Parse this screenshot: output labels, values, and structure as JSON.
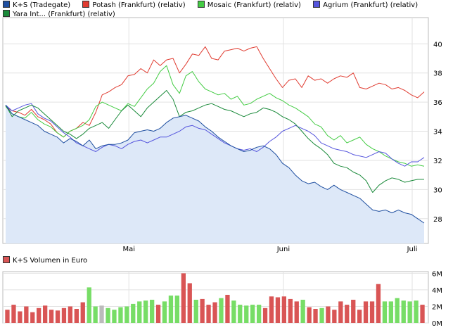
{
  "chart_data": [
    {
      "type": "line",
      "legend": [
        {
          "name": "K+S (Tradegate)",
          "color": "#1f4fa0"
        },
        {
          "name": "Potash (Frankfurt) (relativ)",
          "color": "#e03c31"
        },
        {
          "name": "Mosaic (Frankfurt) (relativ)",
          "color": "#44cc44"
        },
        {
          "name": "Agrium (Frankfurt) (relativ)",
          "color": "#5555dd"
        },
        {
          "name": "Yara Int... (Frankfurt) (relativ)",
          "color": "#1a8a3a"
        }
      ],
      "x_ticks": [
        "Mai",
        "Juni",
        "Juli"
      ],
      "y_ticks": [
        28,
        30,
        32,
        34,
        36,
        38,
        40
      ],
      "ylim": [
        26.3,
        41.8
      ],
      "n_points": 66,
      "series": [
        {
          "name": "K+S (Tradegate)",
          "color": "#1f4fa0",
          "values": [
            35.8,
            35.2,
            35.0,
            34.8,
            34.6,
            34.4,
            34.0,
            33.8,
            33.6,
            33.2,
            33.5,
            33.3,
            33.0,
            33.4,
            32.8,
            33.0,
            33.1,
            33.1,
            33.2,
            33.4,
            33.9,
            34.0,
            34.1,
            34.0,
            34.2,
            34.6,
            34.9,
            35.0,
            35.1,
            34.9,
            34.7,
            34.3,
            34.0,
            33.6,
            33.3,
            33.0,
            32.8,
            32.6,
            32.7,
            32.9,
            33.0,
            32.8,
            32.4,
            31.8,
            31.5,
            31.0,
            30.6,
            30.4,
            30.5,
            30.2,
            30.0,
            30.3,
            30.0,
            29.8,
            29.6,
            29.4,
            29.0,
            28.6,
            28.5,
            28.6,
            28.4,
            28.6,
            28.4,
            28.3,
            28.0,
            27.7
          ]
        },
        {
          "name": "Potash (Frankfurt) (relativ)",
          "color": "#e03c31",
          "values": [
            35.7,
            35.4,
            35.3,
            35.1,
            35.5,
            35.0,
            34.8,
            34.5,
            33.9,
            33.6,
            34.0,
            34.2,
            34.6,
            34.4,
            35.3,
            36.5,
            36.7,
            37.0,
            37.2,
            37.8,
            37.9,
            38.3,
            38.0,
            38.9,
            38.5,
            38.9,
            39.0,
            38.0,
            38.6,
            39.3,
            39.2,
            39.8,
            39.0,
            38.9,
            39.5,
            39.6,
            39.7,
            39.5,
            39.7,
            39.8,
            39.0,
            38.3,
            37.6,
            37.0,
            37.5,
            37.6,
            37.0,
            37.8,
            37.5,
            37.6,
            37.3,
            37.6,
            37.8,
            37.7,
            38.0,
            37.0,
            36.9,
            37.1,
            37.3,
            37.2,
            36.9,
            37.0,
            36.8,
            36.5,
            36.3,
            36.7
          ]
        },
        {
          "name": "Mosaic (Frankfurt) (relativ)",
          "color": "#44cc44",
          "values": [
            35.7,
            35.2,
            35.0,
            34.9,
            35.3,
            34.8,
            34.5,
            34.3,
            33.9,
            33.6,
            34.0,
            34.2,
            34.4,
            34.8,
            35.7,
            36.0,
            35.8,
            35.6,
            35.4,
            35.9,
            35.7,
            36.3,
            36.9,
            37.3,
            38.1,
            38.5,
            37.2,
            36.6,
            37.8,
            38.1,
            37.4,
            36.9,
            36.7,
            36.5,
            36.6,
            36.2,
            36.4,
            35.8,
            35.9,
            36.2,
            36.4,
            36.6,
            36.3,
            36.1,
            35.8,
            35.6,
            35.3,
            35.0,
            34.5,
            34.3,
            33.7,
            33.4,
            33.7,
            33.2,
            33.4,
            33.6,
            33.1,
            32.8,
            32.6,
            32.3,
            32.1,
            31.9,
            31.8,
            31.6,
            31.7,
            31.6
          ]
        },
        {
          "name": "Agrium (Frankfurt) (relativ)",
          "color": "#5555dd",
          "values": [
            35.8,
            35.4,
            35.6,
            35.8,
            35.9,
            35.2,
            34.9,
            34.7,
            34.3,
            33.9,
            33.6,
            33.2,
            33.0,
            32.8,
            32.6,
            32.9,
            33.1,
            33.0,
            32.8,
            33.1,
            33.3,
            33.4,
            33.2,
            33.4,
            33.6,
            33.6,
            33.8,
            34.0,
            34.3,
            34.4,
            34.2,
            34.1,
            33.8,
            33.5,
            33.2,
            33.0,
            32.8,
            32.7,
            32.8,
            32.6,
            32.9,
            33.3,
            33.6,
            34.0,
            34.2,
            34.4,
            34.2,
            34.0,
            33.7,
            33.2,
            33.0,
            32.8,
            32.7,
            32.6,
            32.4,
            32.3,
            32.2,
            32.4,
            32.6,
            32.5,
            32.1,
            31.8,
            31.6,
            31.9,
            31.9,
            32.2
          ]
        },
        {
          "name": "Yara Int... (Frankfurt) (relativ)",
          "color": "#1a8a3a",
          "values": [
            35.8,
            35.0,
            35.4,
            35.6,
            35.8,
            35.6,
            35.2,
            34.8,
            34.4,
            34.0,
            33.8,
            33.5,
            33.8,
            34.2,
            34.4,
            34.6,
            34.2,
            34.8,
            35.4,
            35.8,
            35.4,
            35.0,
            35.6,
            36.0,
            36.4,
            36.8,
            36.2,
            35.0,
            35.3,
            35.4,
            35.6,
            35.8,
            35.9,
            35.7,
            35.5,
            35.4,
            35.2,
            35.0,
            35.2,
            35.3,
            35.6,
            35.5,
            35.3,
            35.0,
            34.8,
            34.5,
            34.0,
            33.5,
            33.1,
            32.8,
            32.4,
            31.8,
            31.6,
            31.5,
            31.2,
            31.0,
            30.6,
            29.8,
            30.3,
            30.6,
            30.8,
            30.7,
            30.5,
            30.6,
            30.7,
            30.7
          ]
        }
      ]
    },
    {
      "type": "bar",
      "legend": [
        {
          "name": "K+S Volumen in Euro",
          "color": "#d9534f"
        }
      ],
      "y_ticks": [
        "0M",
        "2M",
        "4M",
        "6M"
      ],
      "ylim": [
        0,
        6.2
      ],
      "colors": {
        "up": "#77dd66",
        "down": "#d95555",
        "neutral": "#bbbbbb"
      },
      "values": [
        1.6,
        2.2,
        1.4,
        2.0,
        1.3,
        1.8,
        2.1,
        1.6,
        1.5,
        1.8,
        2.0,
        1.7,
        2.5,
        4.3,
        2.0,
        2.1,
        1.8,
        1.6,
        1.9,
        2.0,
        2.3,
        2.6,
        2.7,
        2.8,
        2.2,
        2.6,
        3.3,
        3.3,
        6.0,
        4.8,
        2.8,
        2.9,
        2.2,
        2.5,
        3.0,
        3.4,
        2.7,
        2.2,
        2.1,
        2.2,
        2.2,
        1.8,
        3.2,
        3.1,
        3.2,
        2.9,
        2.6,
        2.8,
        1.9,
        1.7,
        1.8,
        2.0,
        1.6,
        2.6,
        2.2,
        2.8,
        1.6,
        2.6,
        2.6,
        4.7,
        2.6,
        2.6,
        3.0,
        2.7,
        2.6,
        2.7,
        2.2
      ],
      "directions": [
        "d",
        "d",
        "d",
        "d",
        "d",
        "d",
        "d",
        "d",
        "d",
        "d",
        "d",
        "d",
        "d",
        "u",
        "u",
        "n",
        "u",
        "u",
        "u",
        "u",
        "u",
        "u",
        "u",
        "u",
        "d",
        "u",
        "u",
        "u",
        "d",
        "d",
        "u",
        "d",
        "d",
        "d",
        "u",
        "d",
        "u",
        "u",
        "u",
        "u",
        "u",
        "d",
        "d",
        "d",
        "d",
        "d",
        "d",
        "u",
        "d",
        "d",
        "u",
        "d",
        "d",
        "d",
        "d",
        "d",
        "d",
        "d",
        "d",
        "d",
        "u",
        "u",
        "u",
        "u",
        "u",
        "u",
        "d"
      ]
    }
  ]
}
